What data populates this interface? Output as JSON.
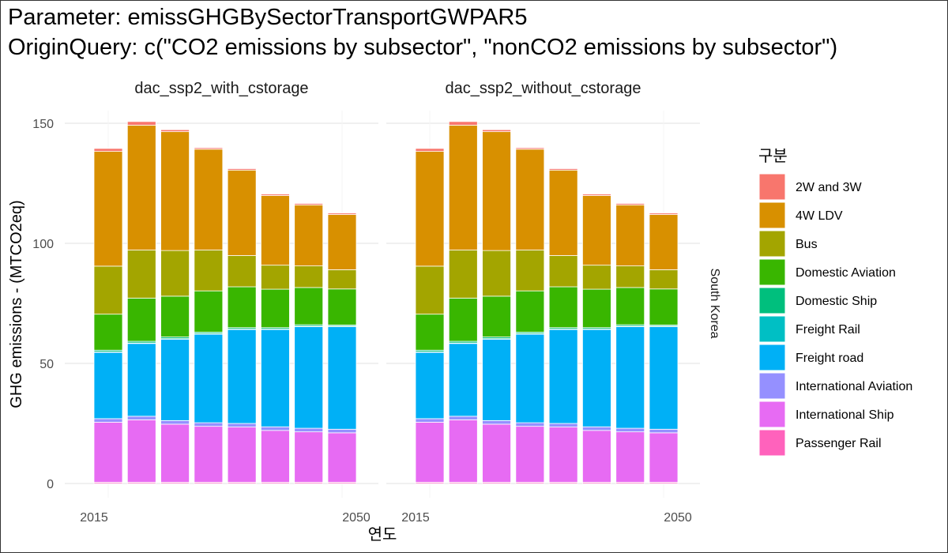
{
  "title_lines": [
    "Parameter: emissGHGBySectorTransportGWPAR5",
    "OriginQuery: c(\"CO2 emissions by subsector\", \"nonCO2 emissions by subsector\")"
  ],
  "chart_data": {
    "type": "bar",
    "stacked": true,
    "xlabel": "연도",
    "ylabel": "GHG emissions - (MTCO2eq)",
    "ylim": [
      0,
      158
    ],
    "yticks": [
      0,
      50,
      100,
      150
    ],
    "x": [
      2015,
      2020,
      2025,
      2030,
      2035,
      2040,
      2045,
      2050
    ],
    "xticks_shown": [
      "2015",
      "2050"
    ],
    "facets": [
      "dac_ssp2_with_cstorage",
      "dac_ssp2_without_cstorage"
    ],
    "row_strip": "South Korea",
    "grid": true,
    "legend_title": "구분",
    "legend_position": "right",
    "series": [
      {
        "name": "2W and 3W",
        "color": "#F8766D",
        "values": [
          1.2,
          1.5,
          0.8,
          0.6,
          0.6,
          0.6,
          0.6,
          0.6
        ]
      },
      {
        "name": "4W LDV",
        "color": "#D89000",
        "values": [
          47.8,
          52.0,
          49.5,
          42.0,
          35.6,
          29.0,
          25.4,
          23.0
        ]
      },
      {
        "name": "Bus",
        "color": "#A3A500",
        "values": [
          20.0,
          20.0,
          19.0,
          17.0,
          13.0,
          10.0,
          9.0,
          8.0
        ]
      },
      {
        "name": "Domestic Aviation",
        "color": "#39B600",
        "values": [
          15.0,
          18.0,
          17.0,
          17.2,
          17.0,
          16.0,
          15.5,
          15.0
        ]
      },
      {
        "name": "Domestic Ship",
        "color": "#00BF7D",
        "values": [
          0.7,
          0.7,
          0.7,
          0.6,
          0.6,
          0.6,
          0.6,
          0.5
        ]
      },
      {
        "name": "Freight Rail",
        "color": "#00BFC4",
        "values": [
          0.2,
          0.2,
          0.2,
          0.2,
          0.2,
          0.2,
          0.2,
          0.2
        ]
      },
      {
        "name": "Freight road",
        "color": "#00B0F6",
        "values": [
          27.6,
          30.3,
          33.9,
          36.9,
          39.1,
          40.5,
          42.3,
          42.7
        ]
      },
      {
        "name": "International Aviation",
        "color": "#9590FF",
        "values": [
          1.5,
          1.5,
          1.5,
          1.5,
          1.5,
          1.5,
          1.5,
          1.5
        ]
      },
      {
        "name": "International Ship",
        "color": "#E76BF3",
        "values": [
          25.0,
          26.0,
          24.2,
          23.3,
          23.0,
          21.6,
          21.0,
          20.6
        ]
      },
      {
        "name": "Passenger Rail",
        "color": "#FF62BC",
        "values": [
          0.5,
          0.5,
          0.5,
          0.5,
          0.5,
          0.5,
          0.5,
          0.5
        ]
      }
    ]
  }
}
